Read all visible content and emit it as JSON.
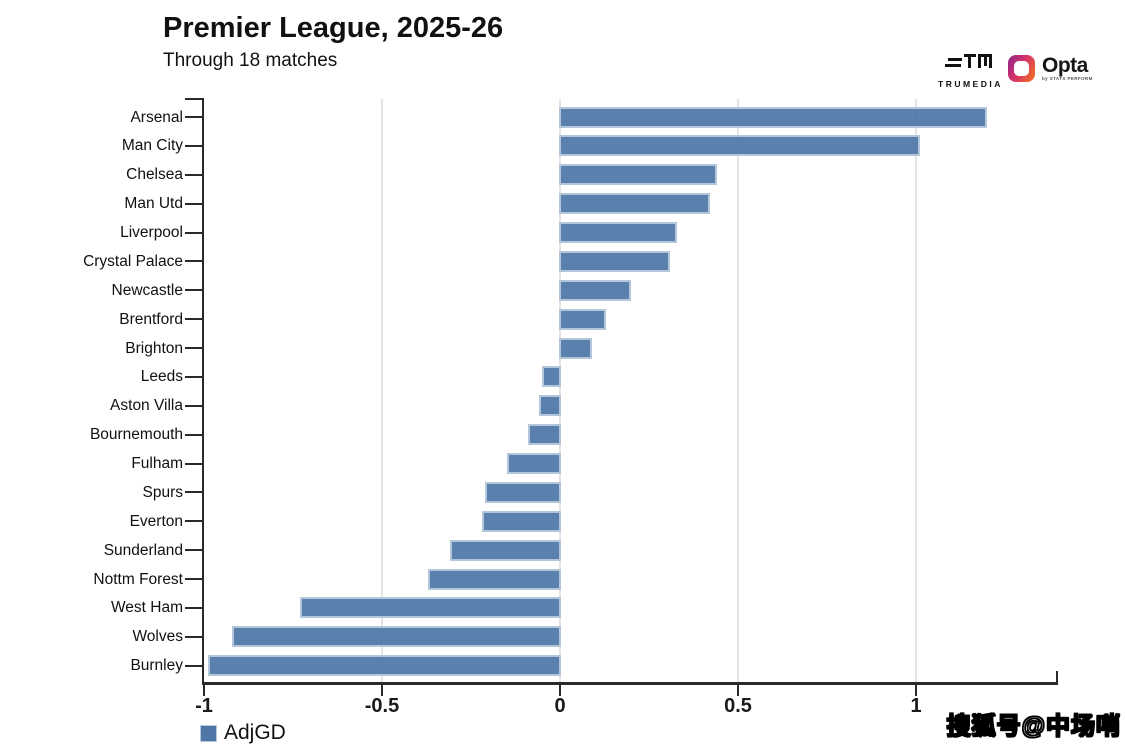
{
  "header": {
    "title": "Premier League, 2025-26",
    "subtitle": "Through 18 matches"
  },
  "branding": {
    "trumedia_label": "TRUMEDIA",
    "opta_label": "Opta",
    "opta_sub": "by STATS PERFORM"
  },
  "chart_data": {
    "type": "bar",
    "orientation": "horizontal",
    "title": "Premier League, 2025-26",
    "subtitle": "Through 18 matches",
    "series_name": "AdjGD",
    "categories": [
      "Arsenal",
      "Man City",
      "Chelsea",
      "Man Utd",
      "Liverpool",
      "Crystal Palace",
      "Newcastle",
      "Brentford",
      "Brighton",
      "Leeds",
      "Aston Villa",
      "Bournemouth",
      "Fulham",
      "Spurs",
      "Everton",
      "Sunderland",
      "Nottm Forest",
      "West Ham",
      "Wolves",
      "Burnley"
    ],
    "values": [
      1.2,
      1.01,
      0.44,
      0.42,
      0.33,
      0.31,
      0.2,
      0.13,
      0.09,
      -0.05,
      -0.06,
      -0.09,
      -0.15,
      -0.21,
      -0.22,
      -0.31,
      -0.37,
      -0.73,
      -0.92,
      -0.99
    ],
    "xlabel": "AdjGD",
    "ylabel": "",
    "xlim": [
      -1.0,
      1.4
    ],
    "x_ticks": [
      -1,
      -0.5,
      0,
      0.5,
      1
    ],
    "x_tick_labels": [
      "-1",
      "-0.5",
      "0",
      "0.5",
      "1"
    ],
    "grid": true,
    "legend_position": "bottom-left",
    "bar_color": "#4e77a8",
    "bar_border_color": "#b9c9dc",
    "gridline_color": "#e4e4e4"
  },
  "legend": {
    "label": "AdjGD",
    "swatch_color": "#4e77a8"
  },
  "watermark": {
    "text": "搜狐号@中场哨"
  }
}
